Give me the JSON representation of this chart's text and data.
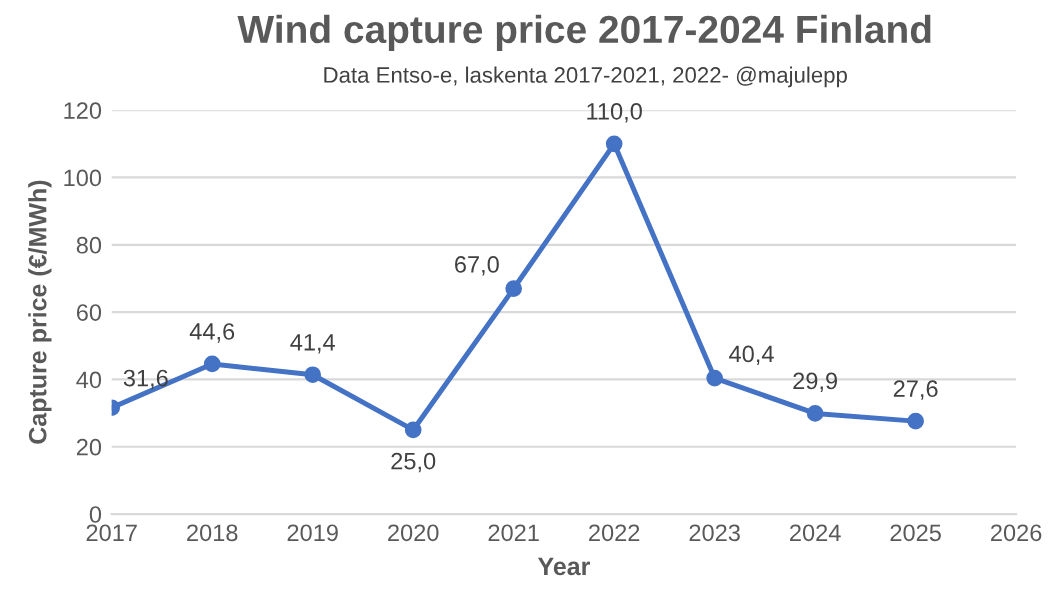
{
  "chart_data": {
    "type": "line",
    "title": "Wind capture price 2017-2024 Finland",
    "subtitle": "Data Entso-e, laskenta 2017-2021, 2022- @majulepp",
    "xlabel": "Year",
    "ylabel": "Capture price (€/MWh)",
    "x": [
      2017,
      2018,
      2019,
      2020,
      2021,
      2022,
      2023,
      2024,
      2025
    ],
    "series": [
      {
        "color": "#4472c4",
        "values": [
          31.6,
          44.6,
          41.4,
          25.0,
          67.0,
          110.0,
          40.4,
          29.9,
          27.6
        ],
        "value_labels": [
          "31,6",
          "44,6",
          "41,4",
          "25,0",
          "67,0",
          "110,0",
          "40,4",
          "29,9",
          "27,6"
        ]
      }
    ],
    "xlim": [
      2017,
      2026
    ],
    "xticks": [
      2017,
      2018,
      2019,
      2020,
      2021,
      2022,
      2023,
      2024,
      2025,
      2026
    ],
    "ylim": [
      0,
      120
    ],
    "yticks": [
      0,
      20,
      40,
      60,
      80,
      100,
      120
    ],
    "grid": "y",
    "marker": "circle",
    "line_style": "solid"
  }
}
